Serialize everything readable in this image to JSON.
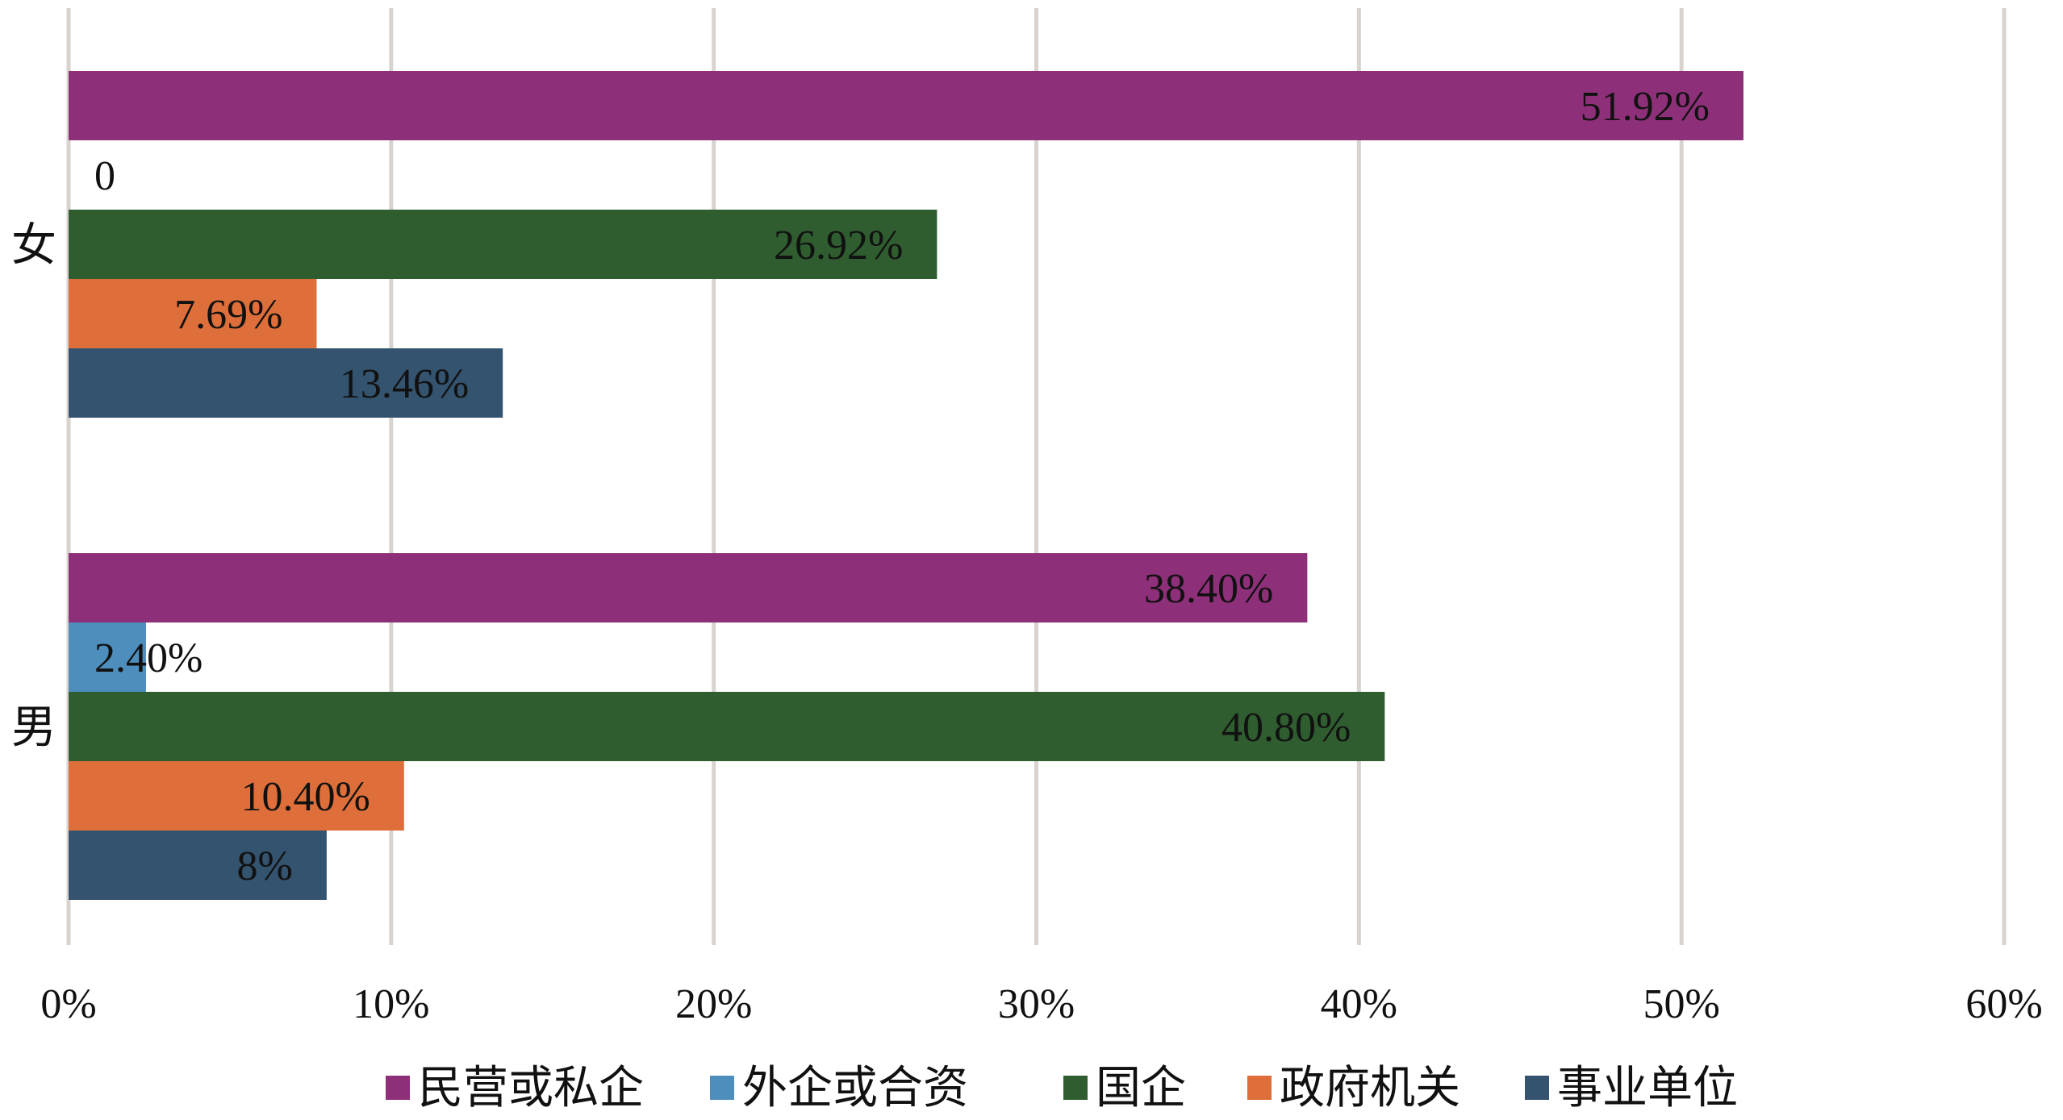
{
  "chart_data": {
    "type": "bar",
    "orientation": "horizontal",
    "categories": [
      "女",
      "男"
    ],
    "series": [
      {
        "name": "民营或私企",
        "values": [
          51.92,
          38.4
        ],
        "labels": [
          "51.92%",
          "38.40%"
        ],
        "color": "#8E3079"
      },
      {
        "name": "外企或合资",
        "values": [
          0,
          2.4
        ],
        "labels": [
          "0",
          "2.40%"
        ],
        "color": "#4E8EBC"
      },
      {
        "name": "国企",
        "values": [
          26.92,
          40.8
        ],
        "labels": [
          "26.92%",
          "40.80%"
        ],
        "color": "#2F5D2F"
      },
      {
        "name": "政府机关",
        "values": [
          7.69,
          10.4
        ],
        "labels": [
          "7.69%",
          "10.40%"
        ],
        "color": "#DE6E3A"
      },
      {
        "name": "事业单位",
        "values": [
          13.46,
          8
        ],
        "labels": [
          "13.46%",
          "8%"
        ],
        "color": "#34536E"
      }
    ],
    "xlim": [
      0,
      60
    ],
    "xticks": [
      "0%",
      "10%",
      "20%",
      "30%",
      "40%",
      "50%",
      "60%"
    ],
    "grid": true,
    "legend_position": "bottom",
    "gridline_color": "#D9D3CF"
  }
}
